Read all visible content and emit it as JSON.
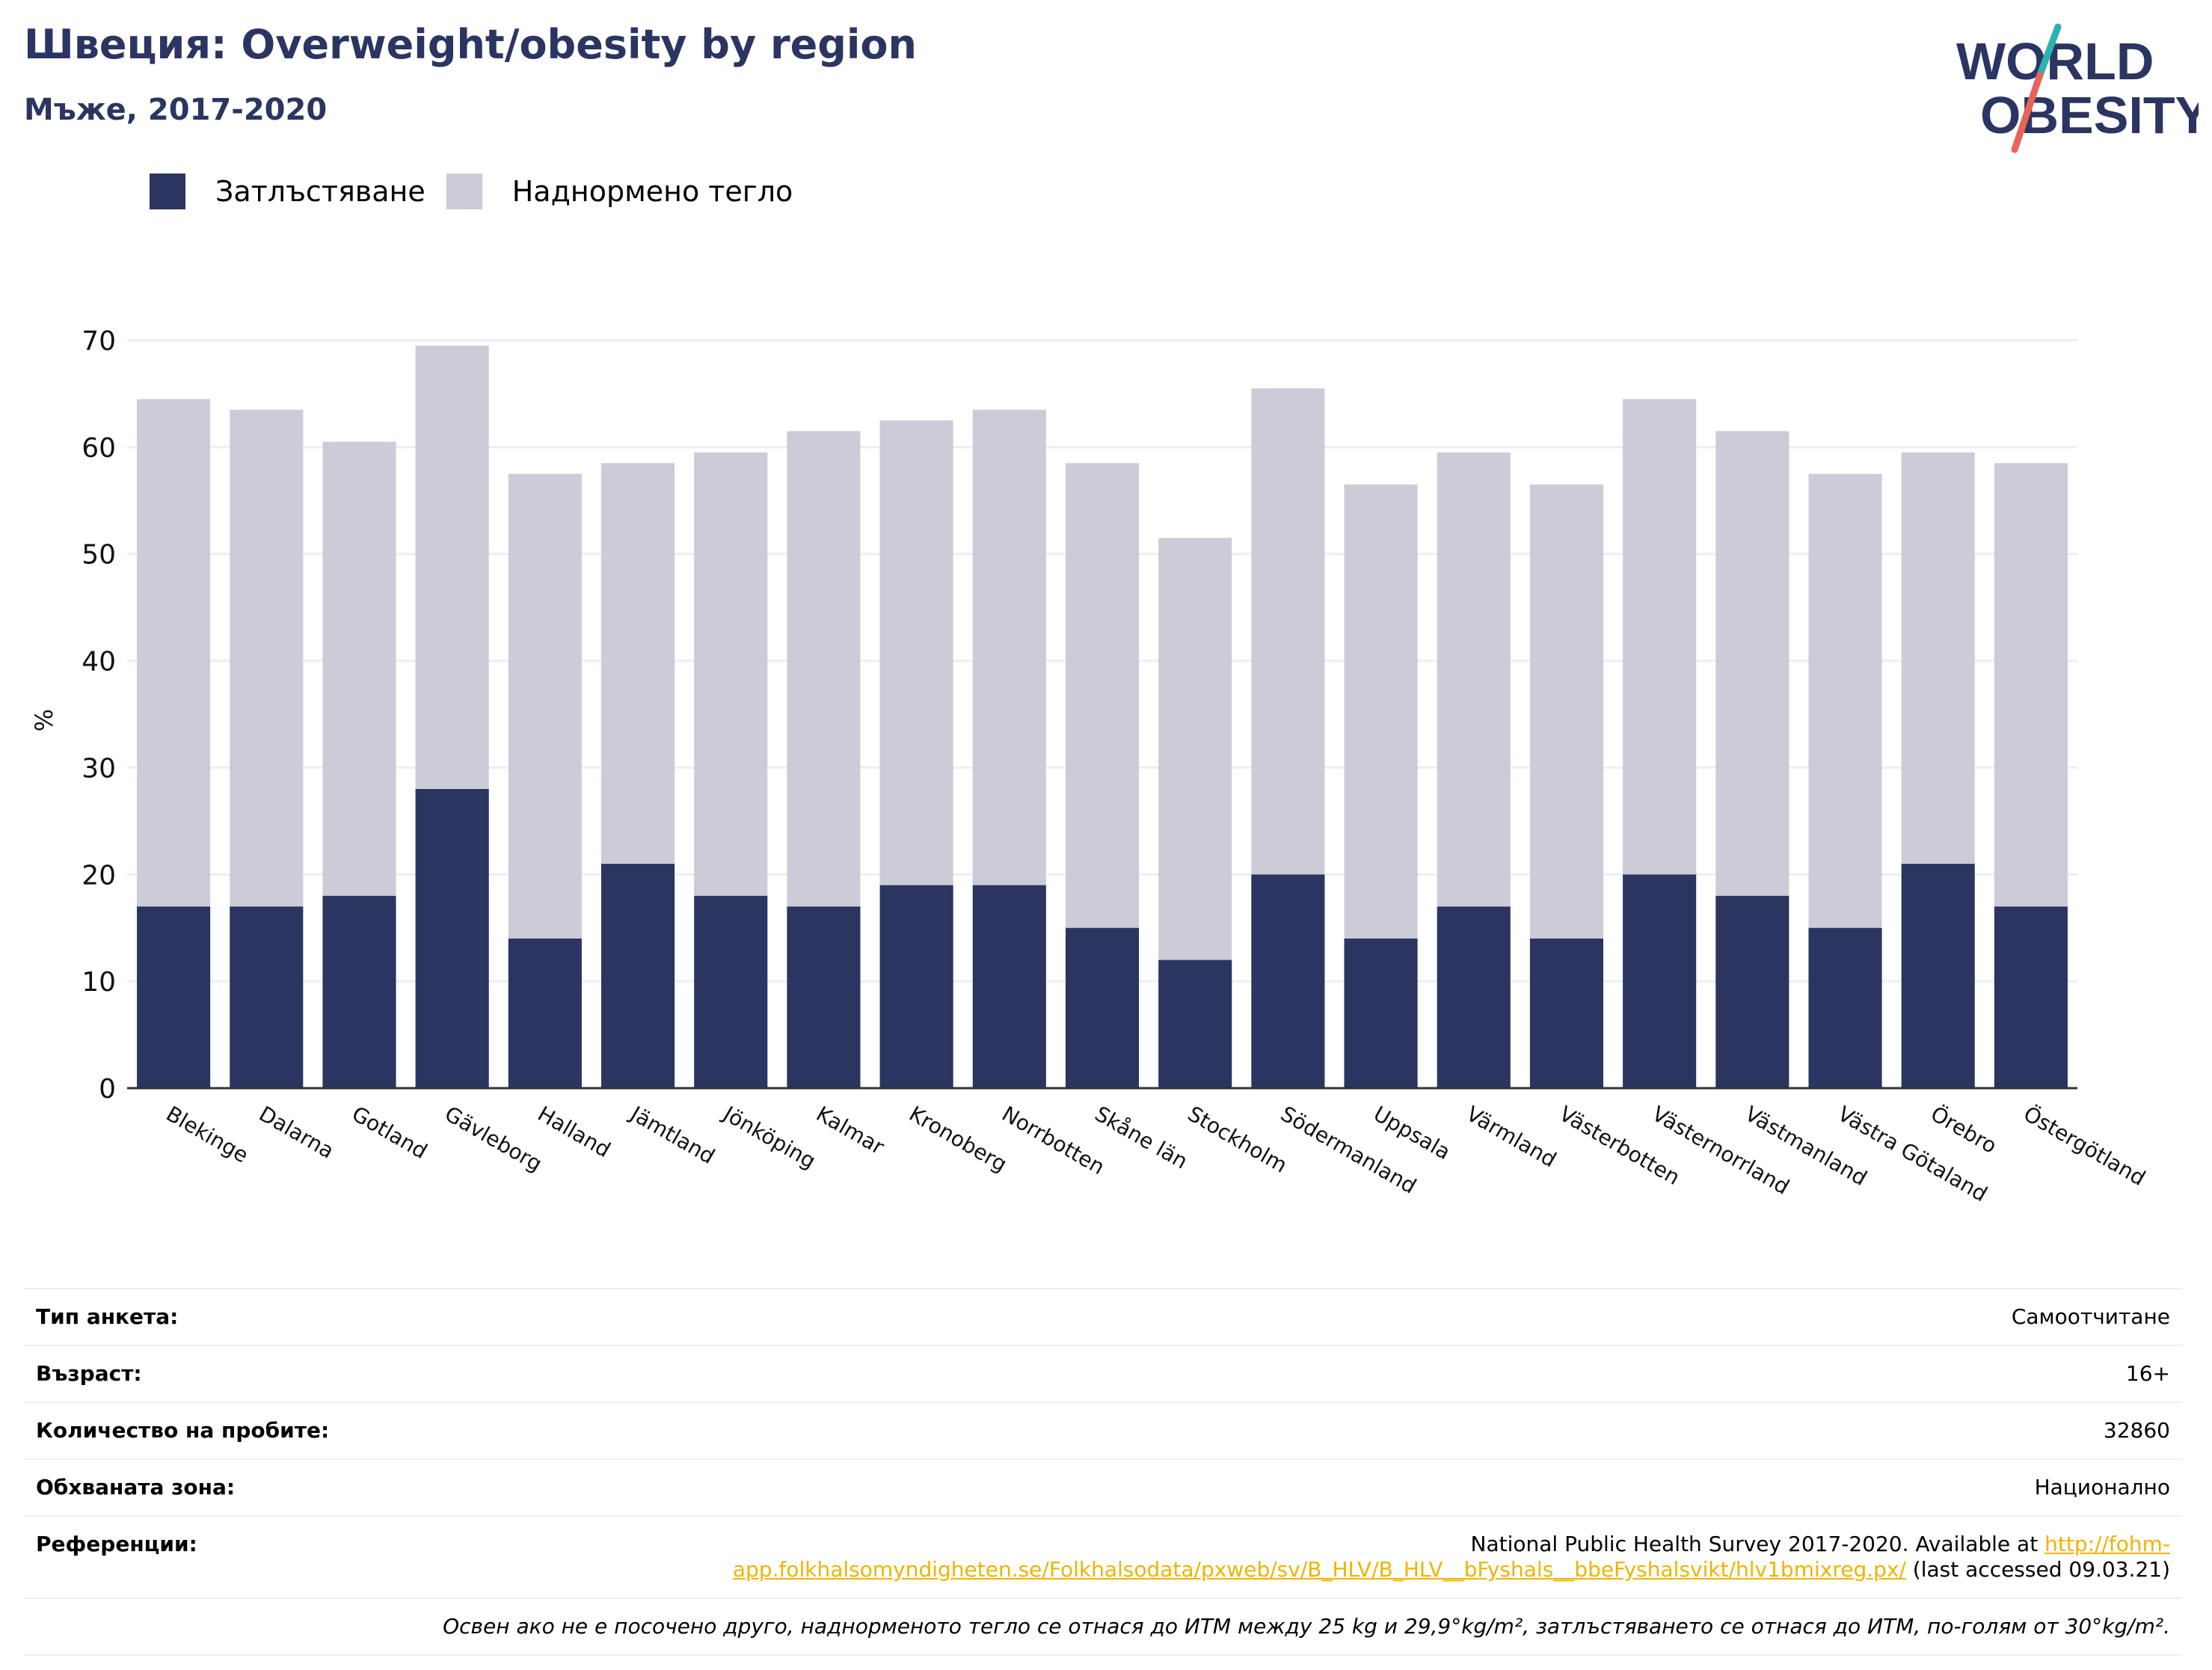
{
  "header": {
    "title": "Швеция: Overweight/obesity by region",
    "subtitle": "Мъже, 2017-2020"
  },
  "logo": {
    "line1": "WORLD",
    "line2": "OBESITY"
  },
  "colors": {
    "obesity": "#2a3561",
    "overweight": "#cbccd8",
    "accent_teal": "#2ab3b0",
    "accent_coral": "#e8635a",
    "link": "#f0b400"
  },
  "legend": {
    "obesity": "Затлъстяване",
    "overweight": "Наднормено тегло"
  },
  "chart_data": {
    "type": "bar",
    "stacked": true,
    "ylabel": "%",
    "ylim": [
      0,
      70
    ],
    "yticks": [
      0,
      10,
      20,
      30,
      40,
      50,
      60,
      70
    ],
    "grid": true,
    "legend_position": "top-left",
    "categories": [
      "Blekinge",
      "Dalarna",
      "Gotland",
      "Gävleborg",
      "Halland",
      "Jämtland",
      "Jönköping",
      "Kalmar",
      "Kronoberg",
      "Norrbotten",
      "Skåne län",
      "Stockholm",
      "Södermanland",
      "Uppsala",
      "Värmland",
      "Västerbotten",
      "Västernorrland",
      "Västmanland",
      "Västra Götaland",
      "Örebro",
      "Östergötland"
    ],
    "series": [
      {
        "name": "Затлъстяване",
        "values": [
          17,
          17,
          18,
          28,
          14,
          21,
          18,
          17,
          19,
          19,
          15,
          12,
          20,
          14,
          17,
          14,
          20,
          18,
          15,
          21,
          17
        ]
      },
      {
        "name": "Наднормено тегло",
        "values": [
          47.5,
          46.5,
          42.5,
          41.5,
          43.5,
          37.5,
          41.5,
          44.5,
          43.5,
          44.5,
          43.5,
          39.5,
          45.5,
          42.5,
          42.5,
          42.5,
          44.5,
          43.5,
          42.5,
          38.5,
          41.5
        ]
      }
    ]
  },
  "info": {
    "survey_label": "Тип анкета:",
    "survey_value": "Самоотчитане",
    "age_label": "Възраст:",
    "age_value": "16+",
    "sample_label": "Количество на пробите:",
    "sample_value": "32860",
    "area_label": "Обхваната зона:",
    "area_value": "Национално",
    "ref_label": "Референции:",
    "ref_text": "National Public Health Survey 2017-2020. Available at ",
    "ref_link": "http://fohm-app.folkhalsomyndigheten.se/Folkhalsodata/pxweb/sv/B_HLV/B_HLV__bFyshals__bbeFyshalsvikt/hlv1bmixreg.px/",
    "ref_suffix": " (last accessed 09.03.21)",
    "note": "Освен ако не е посочено друго, наднорменото тегло се отнася до ИТМ между 25 kg и 29,9°kg/m², затлъстяването се отнася до ИТМ, по-голям от 30°kg/m²."
  }
}
